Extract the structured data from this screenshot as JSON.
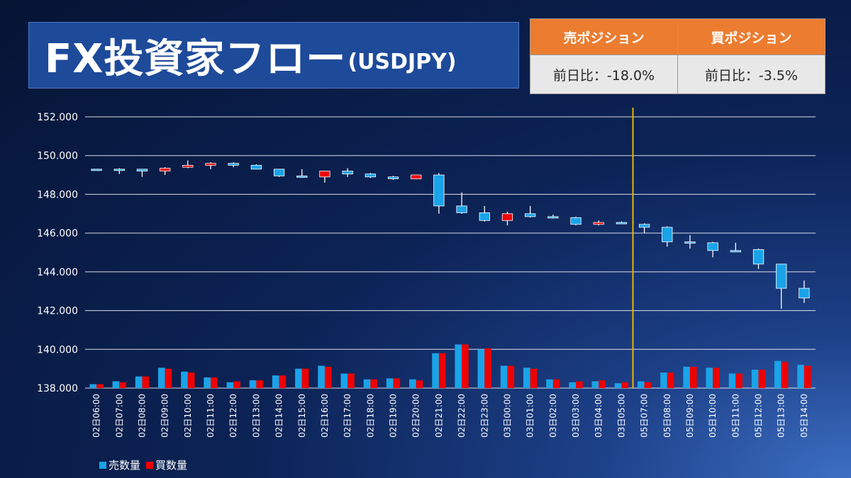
{
  "header": {
    "title": "FX投資家フロー",
    "subtitle": "(USDJPY)"
  },
  "positions": {
    "sell_label": "売ポジション",
    "buy_label": "買ポジション",
    "sell_change": "前日比：-18.0%",
    "buy_change": "前日比：-3.5%"
  },
  "colors": {
    "sell": "#1aa3e8",
    "buy": "#ee0000",
    "marker_line": "#e8b800",
    "header_orange": "#ec7c30"
  },
  "chart_data": {
    "type": "candlestick",
    "ylim": [
      138,
      152
    ],
    "y_ticks": [
      "152.000",
      "150.000",
      "148.000",
      "146.000",
      "144.000",
      "142.000",
      "140.000",
      "138.000"
    ],
    "y_tick_values": [
      152,
      150,
      148,
      146,
      144,
      142,
      140,
      138
    ],
    "categories": [
      "02日06:00",
      "02日07:00",
      "02日08:00",
      "02日09:00",
      "02日10:00",
      "02日11:00",
      "02日12:00",
      "02日13:00",
      "02日14:00",
      "02日15:00",
      "02日16:00",
      "02日17:00",
      "02日18:00",
      "02日19:00",
      "02日20:00",
      "02日21:00",
      "02日22:00",
      "02日23:00",
      "03日00:00",
      "03日01:00",
      "03日02:00",
      "03日03:00",
      "03日04:00",
      "03日05:00",
      "05日07:00",
      "05日08:00",
      "05日09:00",
      "05日10:00",
      "05日11:00",
      "05日12:00",
      "05日13:00",
      "05日14:00"
    ],
    "ohlc": [
      [
        149.3,
        149.3,
        149.3,
        149.3
      ],
      [
        149.3,
        149.35,
        149.05,
        149.3
      ],
      [
        149.3,
        149.3,
        148.9,
        149.2
      ],
      [
        149.2,
        149.4,
        149.0,
        149.35
      ],
      [
        149.4,
        149.75,
        149.35,
        149.5
      ],
      [
        149.5,
        149.65,
        149.3,
        149.6
      ],
      [
        149.6,
        149.65,
        149.4,
        149.5
      ],
      [
        149.5,
        149.55,
        149.3,
        149.3
      ],
      [
        149.3,
        149.3,
        148.9,
        148.95
      ],
      [
        148.95,
        149.3,
        148.85,
        148.9
      ],
      [
        148.9,
        149.1,
        148.6,
        149.2
      ],
      [
        149.2,
        149.35,
        148.9,
        149.05
      ],
      [
        149.05,
        149.1,
        148.85,
        148.9
      ],
      [
        148.9,
        148.95,
        148.75,
        148.8
      ],
      [
        148.8,
        149.0,
        148.8,
        149.0
      ],
      [
        149.0,
        149.1,
        147.0,
        147.4
      ],
      [
        147.4,
        148.1,
        147.0,
        147.05
      ],
      [
        147.05,
        147.4,
        146.6,
        146.65
      ],
      [
        146.65,
        147.1,
        146.4,
        147.0
      ],
      [
        147.0,
        147.4,
        146.8,
        146.85
      ],
      [
        146.85,
        146.95,
        146.75,
        146.8
      ],
      [
        146.8,
        146.85,
        146.4,
        146.45
      ],
      [
        146.45,
        146.65,
        146.4,
        146.55
      ],
      [
        146.55,
        146.6,
        146.5,
        146.5
      ],
      [
        146.45,
        146.5,
        146.0,
        146.3
      ],
      [
        146.3,
        146.35,
        145.3,
        145.55
      ],
      [
        145.55,
        145.9,
        145.2,
        145.5
      ],
      [
        145.5,
        145.55,
        144.75,
        145.1
      ],
      [
        145.1,
        145.5,
        145.05,
        145.1
      ],
      [
        145.15,
        145.2,
        144.15,
        144.4
      ],
      [
        144.4,
        144.4,
        142.1,
        143.15
      ],
      [
        143.15,
        143.55,
        142.4,
        142.65
      ]
    ],
    "sell_volume": [
      138.2,
      138.35,
      138.6,
      139.05,
      138.85,
      138.55,
      138.3,
      138.4,
      138.65,
      139.0,
      139.15,
      138.75,
      138.45,
      138.5,
      138.45,
      139.8,
      140.25,
      140.0,
      139.15,
      139.05,
      138.45,
      138.3,
      138.35,
      138.25,
      138.35,
      138.8,
      139.1,
      139.05,
      138.75,
      138.95,
      139.4,
      139.2
    ],
    "buy_volume": [
      138.2,
      138.3,
      138.6,
      139.0,
      138.8,
      138.55,
      138.35,
      138.4,
      138.65,
      139.0,
      139.1,
      138.75,
      138.45,
      138.5,
      138.4,
      139.8,
      140.25,
      140.05,
      139.15,
      139.0,
      138.45,
      138.35,
      138.4,
      138.3,
      138.3,
      138.8,
      139.1,
      139.05,
      138.75,
      138.95,
      139.35,
      139.15
    ],
    "marker_after_index": 23,
    "legend": [
      "売数量",
      "買数量"
    ]
  }
}
